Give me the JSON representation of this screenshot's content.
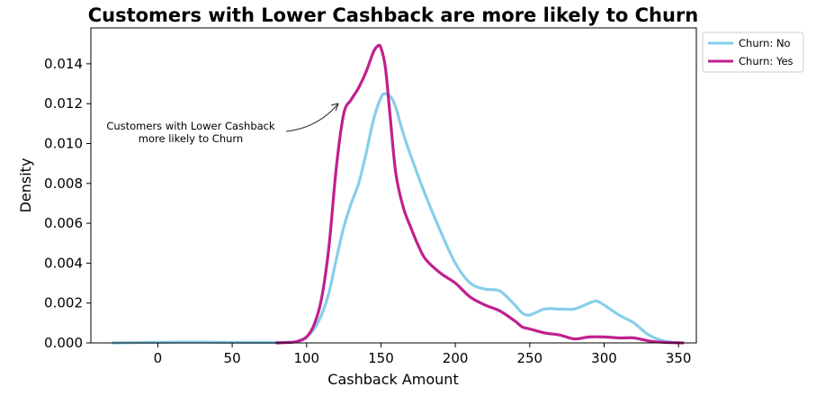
{
  "chart_data": {
    "type": "line",
    "title": "Customers with Lower Cashback are more likely to Churn",
    "xlabel": "Cashback Amount",
    "ylabel": "Density",
    "xlim": [
      -45,
      362
    ],
    "ylim": [
      0,
      0.0158
    ],
    "xticks": [
      0,
      50,
      100,
      150,
      200,
      250,
      300,
      350
    ],
    "yticks": [
      0,
      0.002,
      0.004,
      0.006,
      0.008,
      0.01,
      0.012,
      0.014
    ],
    "xtick_labels": [
      "0",
      "50",
      "100",
      "150",
      "200",
      "250",
      "300",
      "350"
    ],
    "ytick_labels": [
      "0.000",
      "0.002",
      "0.004",
      "0.006",
      "0.008",
      "0.010",
      "0.012",
      "0.014"
    ],
    "grid": false,
    "legend_position": "outside-top-right",
    "series": [
      {
        "name": "Churn: No",
        "color": "#87ceeb",
        "x": [
          -30,
          0,
          30,
          60,
          90,
          95,
          100,
          105,
          110,
          115,
          120,
          125,
          130,
          135,
          140,
          145,
          150,
          153,
          157,
          160,
          165,
          170,
          180,
          190,
          200,
          210,
          220,
          230,
          240,
          245,
          250,
          260,
          270,
          280,
          290,
          295,
          300,
          310,
          320,
          330,
          340,
          350
        ],
        "y": [
          0.0,
          3e-05,
          4e-05,
          2e-05,
          4e-05,
          0.00012,
          0.0003,
          0.0007,
          0.0014,
          0.0025,
          0.0042,
          0.0058,
          0.007,
          0.008,
          0.0095,
          0.0112,
          0.0123,
          0.0125,
          0.0123,
          0.0118,
          0.0105,
          0.0094,
          0.0074,
          0.0056,
          0.004,
          0.003,
          0.0027,
          0.0026,
          0.0019,
          0.0015,
          0.0014,
          0.0017,
          0.0017,
          0.0017,
          0.002,
          0.0021,
          0.0019,
          0.0014,
          0.001,
          0.0004,
          0.0001,
          0.0
        ]
      },
      {
        "name": "Churn: Yes",
        "color": "#c0208f",
        "x": [
          80,
          90,
          95,
          100,
          105,
          110,
          115,
          120,
          125,
          130,
          135,
          140,
          145,
          148,
          150,
          153,
          156,
          160,
          165,
          170,
          175,
          180,
          190,
          200,
          210,
          220,
          230,
          240,
          245,
          250,
          260,
          270,
          280,
          290,
          300,
          310,
          320,
          330,
          340,
          353
        ],
        "y": [
          0.0,
          3e-05,
          0.0001,
          0.0003,
          0.0009,
          0.0022,
          0.0048,
          0.0088,
          0.0115,
          0.0122,
          0.0128,
          0.0136,
          0.0146,
          0.0149,
          0.0148,
          0.0138,
          0.0115,
          0.0085,
          0.0068,
          0.0058,
          0.0049,
          0.0042,
          0.0035,
          0.003,
          0.0023,
          0.0019,
          0.0016,
          0.0011,
          0.0008,
          0.0007,
          0.0005,
          0.0004,
          0.0002,
          0.0003,
          0.0003,
          0.00025,
          0.00025,
          0.0001,
          3e-05,
          0.0
        ]
      }
    ],
    "annotation": {
      "lines": [
        "Customers with Lower Cashback",
        "more likely to Churn"
      ],
      "arrow_target": [
        122,
        0.0121
      ]
    }
  }
}
